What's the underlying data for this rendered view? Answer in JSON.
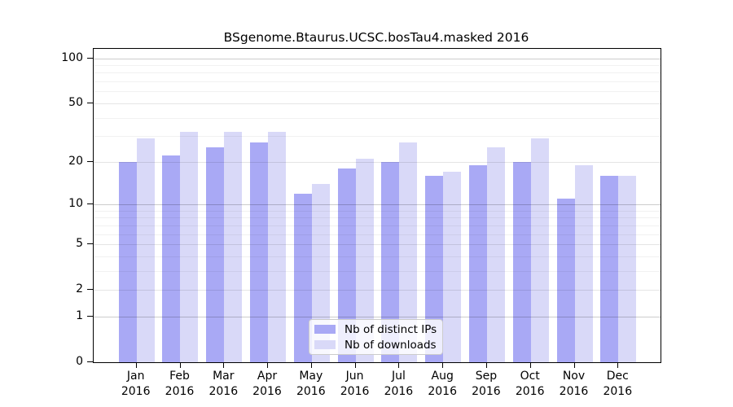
{
  "chart_data": {
    "type": "bar",
    "title": "BSgenome.Btaurus.UCSC.bosTau4.masked 2016",
    "categories": [
      "Jan",
      "Feb",
      "Mar",
      "Apr",
      "May",
      "Jun",
      "Jul",
      "Aug",
      "Sep",
      "Oct",
      "Nov",
      "Dec"
    ],
    "year_label": "2016",
    "series": [
      {
        "name": "Nb of distinct IPs",
        "color": "#a9a9f5",
        "values": [
          20,
          22,
          25,
          27,
          12,
          18,
          20,
          16,
          19,
          20,
          11,
          16
        ]
      },
      {
        "name": "Nb of downloads",
        "color": "#d9d9f8",
        "values": [
          29,
          32,
          32,
          32,
          14,
          21,
          27,
          17,
          25,
          29,
          19,
          16
        ]
      }
    ],
    "yaxis": {
      "scale": "log10(1+y)",
      "tick_labels": [
        "0",
        "1",
        "2",
        "5",
        "10",
        "20",
        "50",
        "100"
      ],
      "major_ticks": [
        0,
        1,
        2,
        5,
        10,
        20,
        50,
        100
      ],
      "decade_gridlines": [
        1,
        10,
        100
      ],
      "minor_gridlines": [
        3,
        4,
        6,
        7,
        8,
        9,
        30,
        40,
        60,
        70,
        80,
        90
      ],
      "top_value": 117
    },
    "legend": {
      "position": "bottom-center",
      "entries": [
        "Nb of distinct IPs",
        "Nb of downloads"
      ]
    },
    "grid": true,
    "background": "#ffffff"
  },
  "colors": {
    "axis": "#000000",
    "grid_decade": "rgba(0,0,0,0.20)",
    "grid_major": "rgba(0,0,0,0.10)",
    "grid_minor": "rgba(0,0,0,0.055)",
    "legend_border": "#cccccc"
  }
}
